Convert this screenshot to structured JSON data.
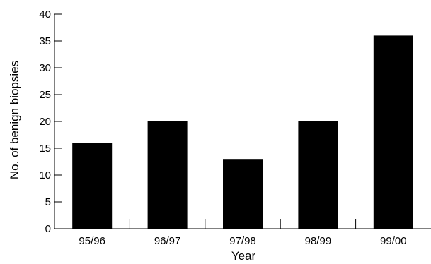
{
  "chart_data": {
    "type": "bar",
    "title": "",
    "xlabel": "Year",
    "ylabel": "No. of benign biopsies",
    "categories": [
      "95/96",
      "96/97",
      "97/98",
      "98/99",
      "99/00"
    ],
    "values": [
      16,
      20,
      13,
      20,
      36
    ],
    "ylim": [
      0,
      40
    ],
    "yticks": [
      "0",
      "5",
      "10",
      "15",
      "20",
      "25",
      "30",
      "35",
      "40"
    ],
    "grid": false,
    "bar_color": "#000000"
  }
}
